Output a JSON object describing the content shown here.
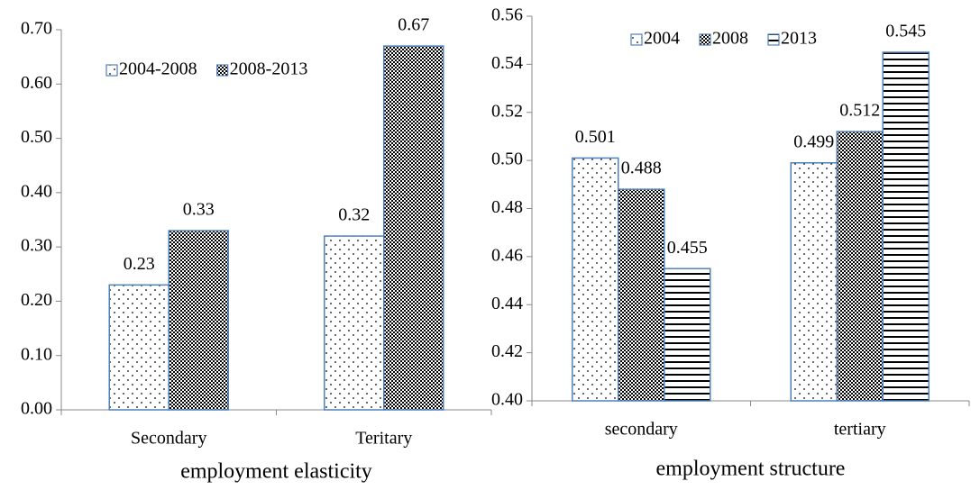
{
  "chart_data": [
    {
      "type": "bar",
      "x_label": "employment elasticity",
      "categories": [
        "Secondary",
        "Teritary"
      ],
      "series": [
        {
          "name": "2004-2008",
          "color": "#4f81bd",
          "pattern": "dots",
          "values": [
            0.23,
            0.32
          ]
        },
        {
          "name": "2008-2013",
          "color": "#4f81bd",
          "pattern": "checker",
          "values": [
            0.33,
            0.67
          ]
        }
      ],
      "ylim": [
        0,
        0.7
      ],
      "yticks": [
        {
          "value": 0,
          "label": "0.00"
        },
        {
          "value": 0.1,
          "label": "0.10"
        },
        {
          "value": 0.2,
          "label": "0.20"
        },
        {
          "value": 0.3,
          "label": "0.30"
        },
        {
          "value": 0.4,
          "label": "0.40"
        },
        {
          "value": 0.5,
          "label": "0.50"
        },
        {
          "value": 0.6,
          "label": "0.60"
        },
        {
          "value": 0.7,
          "label": "0.70"
        }
      ],
      "legend": "upper left"
    },
    {
      "type": "bar",
      "x_label": "employment structure",
      "categories": [
        "secondary",
        "tertiary"
      ],
      "series": [
        {
          "name": "2004",
          "color": "#4f81bd",
          "pattern": "dots",
          "values": [
            0.501,
            0.499
          ]
        },
        {
          "name": "2008",
          "color": "#4f81bd",
          "pattern": "checker",
          "values": [
            0.488,
            0.512
          ]
        },
        {
          "name": "2013",
          "color": "#4f81bd",
          "pattern": "hlines",
          "values": [
            0.455,
            0.545
          ]
        }
      ],
      "ylim": [
        0.4,
        0.56
      ],
      "yticks": [
        {
          "value": 0.4,
          "label": "0.40"
        },
        0.42,
        0.44,
        0.46,
        0.48,
        {
          "value": 0.5,
          "label": "0.50"
        },
        0.52,
        0.54,
        0.56
      ],
      "legend": "upper center"
    }
  ]
}
